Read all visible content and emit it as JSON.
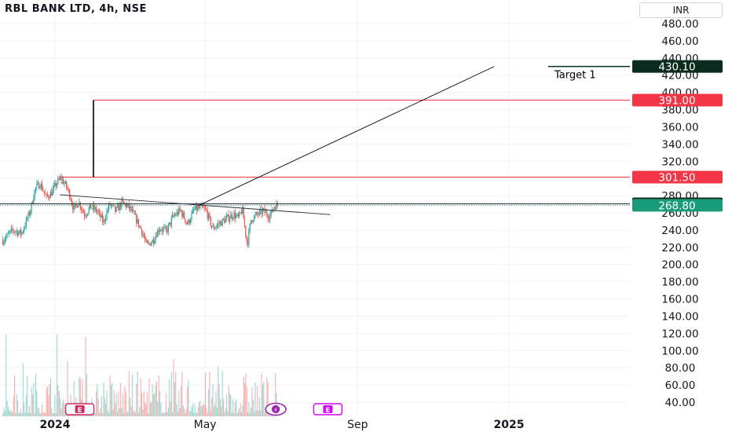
{
  "header": {
    "title": "RBL BANK LTD, 4h, NSE",
    "currency": "INR"
  },
  "colors": {
    "up": "#26a69a",
    "down": "#ef5350",
    "line_red": "#f23645",
    "dark": "#0b2b1e",
    "current": "#1a9c7a",
    "event_e": "#d12a60",
    "event_flash": "#9c27b0",
    "event_future": "#d500f9"
  },
  "chart_data": {
    "type": "candlestick",
    "ylim": [
      40,
      480
    ],
    "y_ticks": [
      "480.00",
      "460.00",
      "440.00",
      "420.00",
      "400.00",
      "380.00",
      "360.00",
      "340.00",
      "320.00",
      "300.00",
      "280.00",
      "260.00",
      "240.00",
      "220.00",
      "200.00",
      "180.00",
      "160.00",
      "140.00",
      "120.00",
      "100.00",
      "80.00",
      "60.00",
      "40.00"
    ],
    "x_ticks": [
      {
        "label": "2024",
        "bold": true,
        "date": "2024-01-01"
      },
      {
        "label": "May",
        "bold": false,
        "date": "2024-05-01"
      },
      {
        "label": "Sep",
        "bold": false,
        "date": "2024-09-01"
      },
      {
        "label": "2025",
        "bold": true,
        "date": "2025-01-01"
      }
    ],
    "price_path": [
      [
        "2023-11-20",
        228
      ],
      [
        "2023-11-28",
        240
      ],
      [
        "2023-12-05",
        236
      ],
      [
        "2023-12-12",
        262
      ],
      [
        "2023-12-16",
        288
      ],
      [
        "2023-12-20",
        294
      ],
      [
        "2023-12-25",
        278
      ],
      [
        "2023-12-29",
        283
      ],
      [
        "2024-01-03",
        296
      ],
      [
        "2024-01-06",
        300
      ],
      [
        "2024-01-10",
        291
      ],
      [
        "2024-01-13",
        281
      ],
      [
        "2024-01-16",
        264
      ],
      [
        "2024-01-20",
        273
      ],
      [
        "2024-01-25",
        258
      ],
      [
        "2024-01-30",
        267
      ],
      [
        "2024-02-04",
        262
      ],
      [
        "2024-02-09",
        249
      ],
      [
        "2024-02-14",
        270
      ],
      [
        "2024-02-19",
        262
      ],
      [
        "2024-02-24",
        272
      ],
      [
        "2024-03-01",
        266
      ],
      [
        "2024-03-06",
        254
      ],
      [
        "2024-03-11",
        239
      ],
      [
        "2024-03-15",
        222
      ],
      [
        "2024-03-20",
        228
      ],
      [
        "2024-03-25",
        242
      ],
      [
        "2024-03-31",
        239
      ],
      [
        "2024-04-05",
        255
      ],
      [
        "2024-04-11",
        263
      ],
      [
        "2024-04-17",
        247
      ],
      [
        "2024-04-22",
        263
      ],
      [
        "2024-04-28",
        266
      ],
      [
        "2024-05-02",
        262
      ],
      [
        "2024-05-07",
        242
      ],
      [
        "2024-05-12",
        247
      ],
      [
        "2024-05-18",
        253
      ],
      [
        "2024-05-24",
        258
      ],
      [
        "2024-05-28",
        254
      ],
      [
        "2024-05-31",
        264
      ],
      [
        "2024-06-04",
        223
      ],
      [
        "2024-06-07",
        252
      ],
      [
        "2024-06-12",
        258
      ],
      [
        "2024-06-17",
        262
      ],
      [
        "2024-06-22",
        256
      ],
      [
        "2024-06-26",
        268
      ],
      [
        "2024-06-29",
        269
      ]
    ],
    "volume_max_label_value": 140,
    "levels": [
      {
        "label": "430.10",
        "value": 430.1,
        "style": "dark"
      },
      {
        "label": "391.00",
        "value": 391.0,
        "style": "red"
      },
      {
        "label": "301.50",
        "value": 301.5,
        "style": "red"
      },
      {
        "label": "270.45",
        "value": 270.45,
        "style": "dark"
      },
      {
        "label": "268.80",
        "value": 268.8,
        "style": "current"
      }
    ],
    "annotations": {
      "target_text": "Target 1",
      "measure": {
        "from": 301.5,
        "to": 391.0,
        "date": "2024-02-01"
      },
      "trend_to_target": {
        "from": {
          "date": "2024-04-25",
          "value": 268
        },
        "to": {
          "date": "2024-12-20",
          "value": 430
        }
      },
      "descending_trendline": {
        "from": {
          "date": "2024-01-05",
          "value": 281
        },
        "to": {
          "date": "2024-08-10",
          "value": 258
        }
      }
    },
    "events": [
      {
        "symbol": "E",
        "date": "2024-01-21",
        "style": "past"
      },
      {
        "symbol": "⚡",
        "date": "2024-06-27",
        "style": "flash"
      },
      {
        "symbol": "E",
        "date": "2024-08-08",
        "style": "future"
      }
    ]
  }
}
